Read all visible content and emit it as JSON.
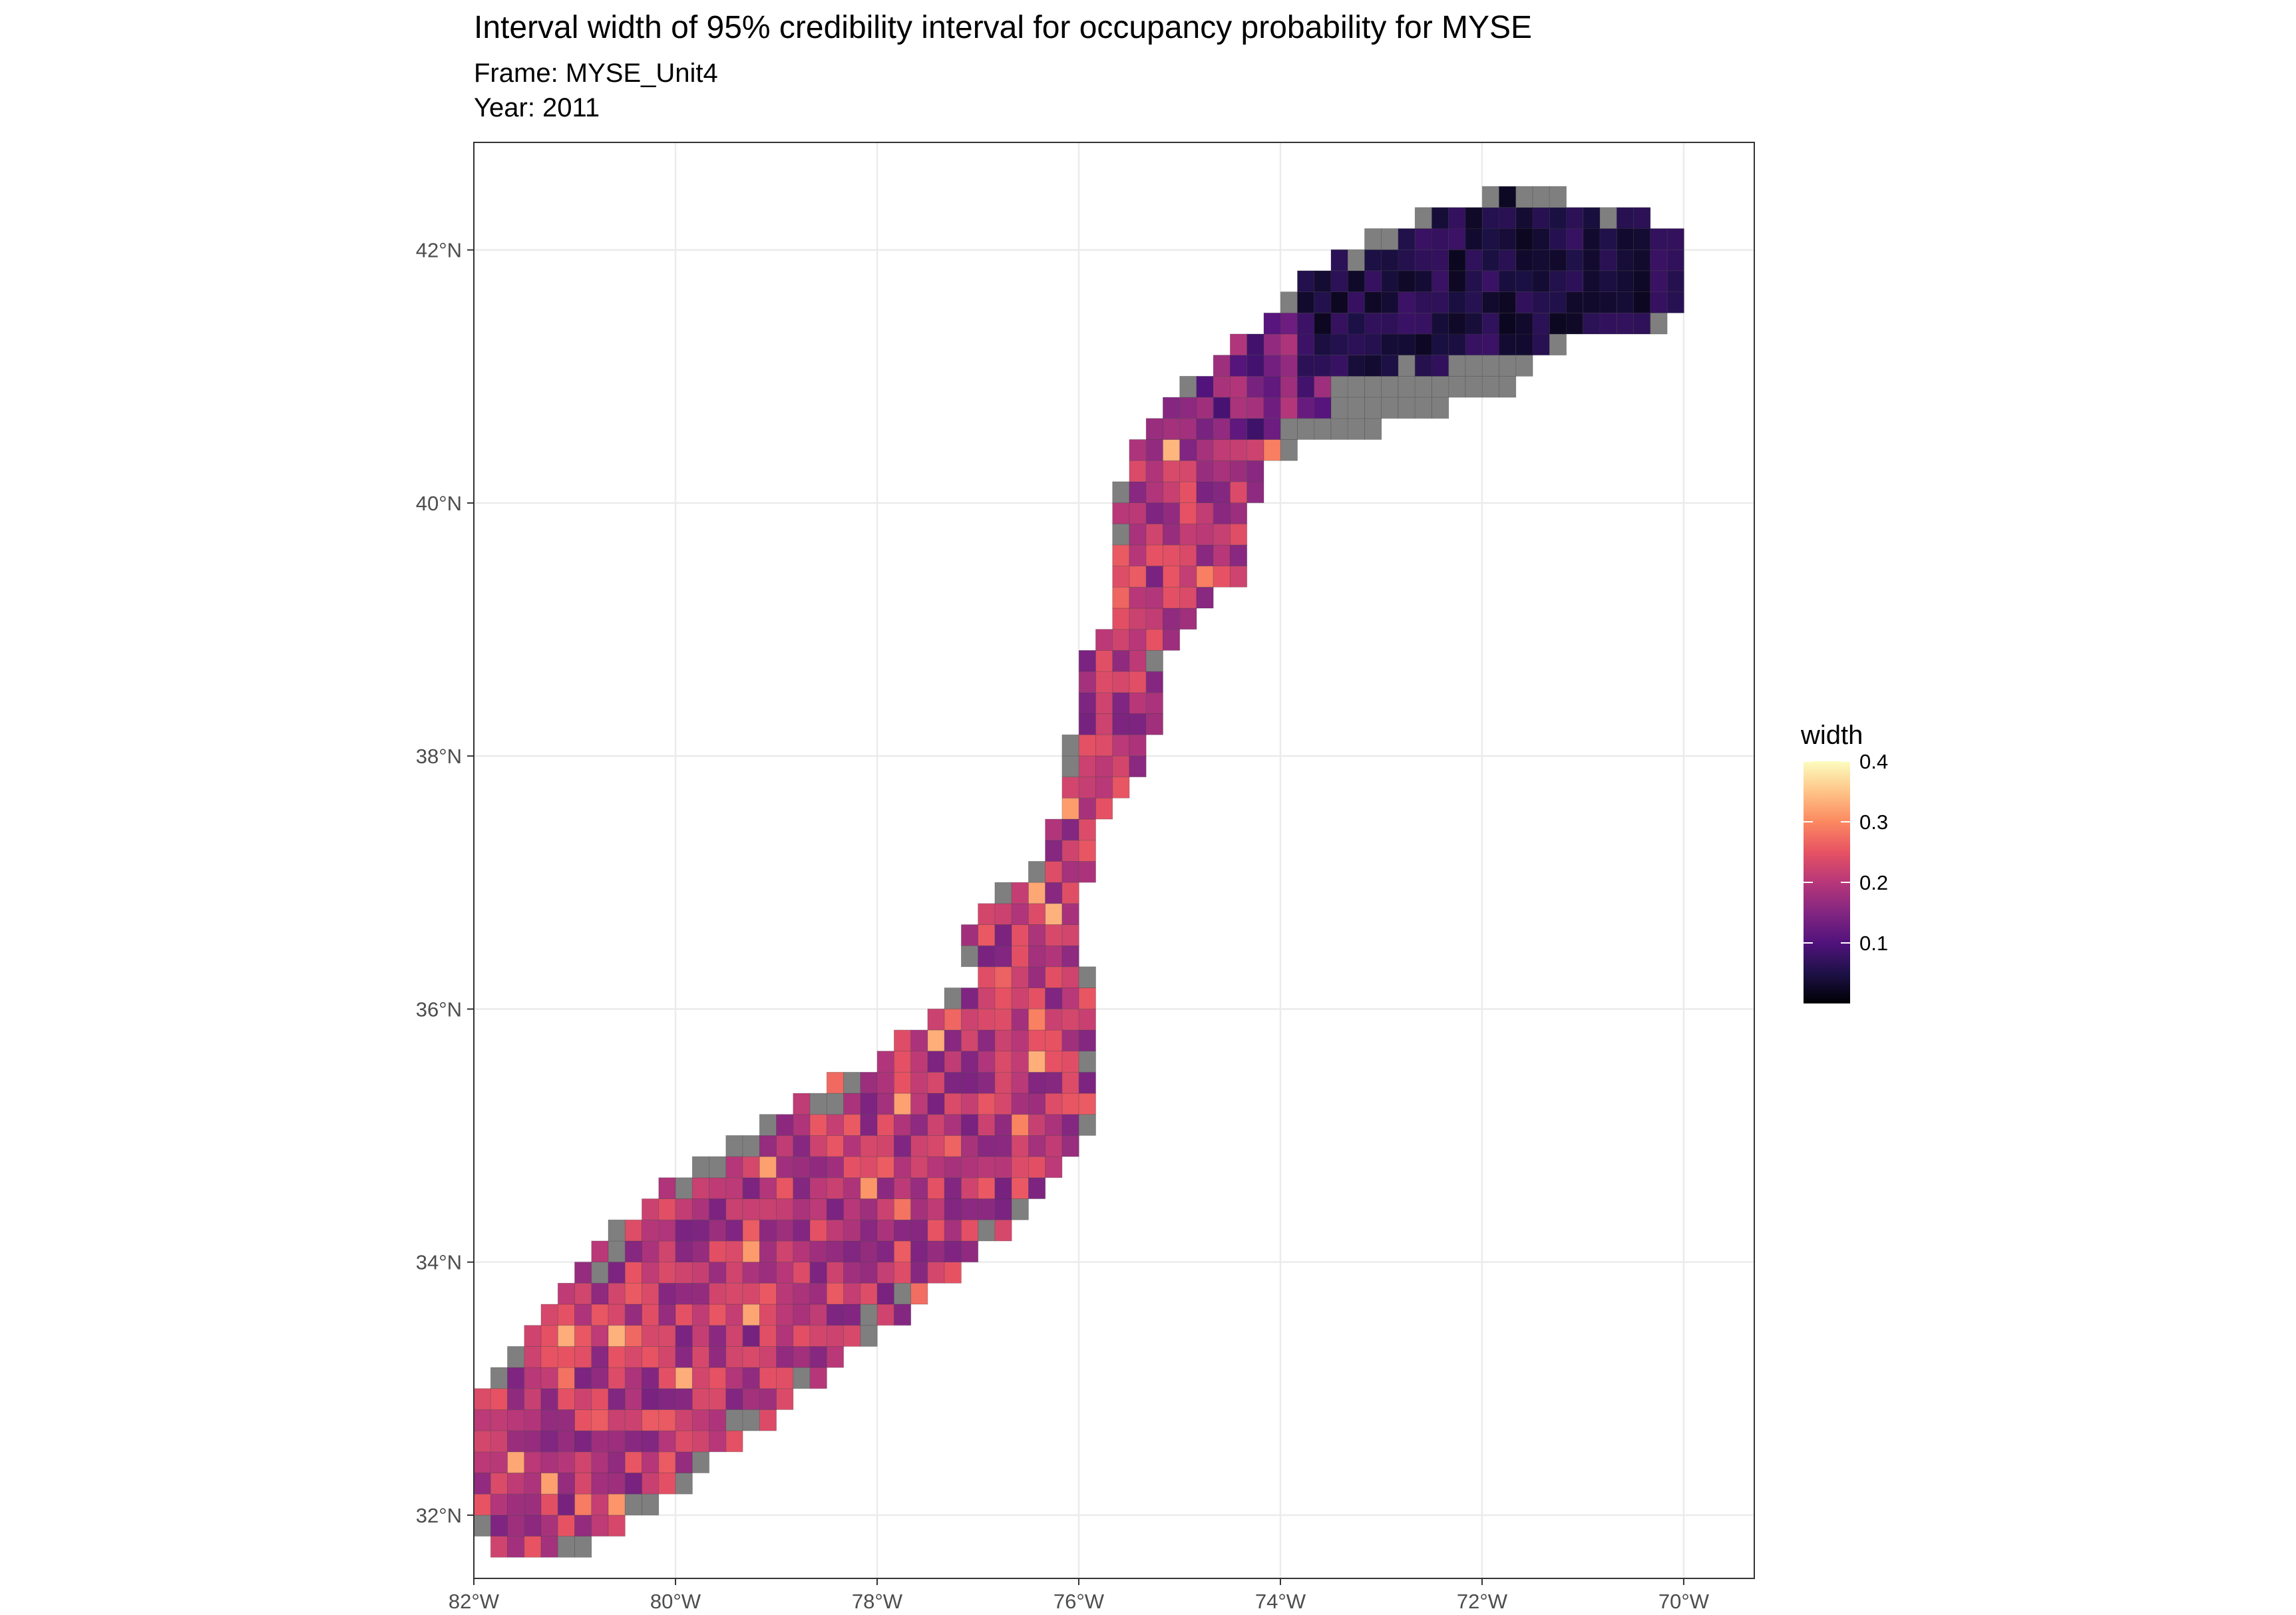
{
  "title": "Interval width of 95% credibility interval for occupancy probability for MYSE",
  "subtitle_frame": "Frame: MYSE_Unit4",
  "subtitle_year": "Year: 2011",
  "chart_data": {
    "type": "heatmap",
    "xlim": [
      -82,
      -69.3
    ],
    "ylim": [
      31.5,
      42.85
    ],
    "x_ticks": [
      -82,
      -80,
      -78,
      -76,
      -74,
      -72,
      -70
    ],
    "x_tick_labels": [
      "82°W",
      "80°W",
      "78°W",
      "76°W",
      "74°W",
      "72°W",
      "70°W"
    ],
    "y_ticks": [
      32,
      34,
      36,
      38,
      40,
      42
    ],
    "y_tick_labels": [
      "32°N",
      "34°N",
      "36°N",
      "38°N",
      "40°N",
      "42°N"
    ],
    "grid": true,
    "legend": {
      "title": "width",
      "placement": "right",
      "min": 0.0,
      "max": 0.4,
      "breaks": [
        0.1,
        0.2,
        0.3,
        0.4
      ],
      "break_labels": [
        "0.1",
        "0.2",
        "0.3",
        "0.4"
      ]
    },
    "na_color": "#7f7f7f",
    "colors": {
      "scale": [
        "#000004",
        "#1d1147",
        "#51127c",
        "#822681",
        "#b73779",
        "#e75263",
        "#fc8961",
        "#fec488",
        "#fcfdbf"
      ]
    },
    "cell_size_deg": 0.1667,
    "strip_path": [
      {
        "x": -81.35,
        "y": 32.45,
        "w": 0.85
      },
      {
        "x": -80.7,
        "y": 32.9,
        "w": 1.0
      },
      {
        "x": -80.0,
        "y": 33.4,
        "w": 1.05
      },
      {
        "x": -79.25,
        "y": 33.9,
        "w": 1.05
      },
      {
        "x": -78.5,
        "y": 34.3,
        "w": 1.0
      },
      {
        "x": -77.7,
        "y": 34.7,
        "w": 0.95
      },
      {
        "x": -77.0,
        "y": 35.2,
        "w": 0.9
      },
      {
        "x": -76.6,
        "y": 35.6,
        "w": 0.9
      },
      {
        "x": -76.4,
        "y": 36.0,
        "w": 0.6
      },
      {
        "x": -76.5,
        "y": 36.5,
        "w": 0.6
      },
      {
        "x": -76.2,
        "y": 37.0,
        "w": 0.25
      },
      {
        "x": -76.0,
        "y": 37.5,
        "w": 0.25
      },
      {
        "x": -75.75,
        "y": 38.0,
        "w": 0.35
      },
      {
        "x": -75.6,
        "y": 38.5,
        "w": 0.45
      },
      {
        "x": -75.5,
        "y": 38.9,
        "w": 0.3
      },
      {
        "x": -75.2,
        "y": 39.3,
        "w": 0.5
      },
      {
        "x": -75.0,
        "y": 39.8,
        "w": 0.75
      },
      {
        "x": -74.8,
        "y": 40.3,
        "w": 0.6
      },
      {
        "x": -74.3,
        "y": 40.8,
        "w": 0.45
      },
      {
        "x": -73.6,
        "y": 41.3,
        "w": 0.5
      },
      {
        "x": -72.6,
        "y": 41.65,
        "w": 0.6
      },
      {
        "x": -71.6,
        "y": 41.85,
        "w": 0.65
      },
      {
        "x": -70.4,
        "y": 41.8,
        "w": 0.45
      }
    ],
    "grey_band": {
      "from": {
        "x": -74.0,
        "y": 40.7
      },
      "to": {
        "x": -71.8,
        "y": 41.15
      },
      "w": 0.3
    }
  }
}
